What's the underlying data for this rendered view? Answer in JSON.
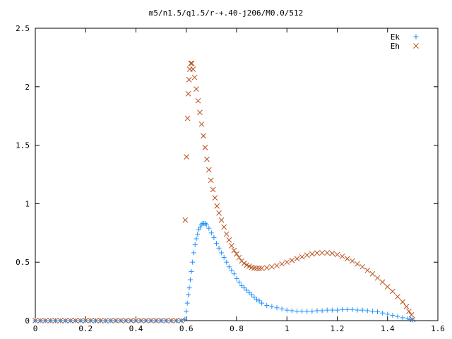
{
  "chart_data": {
    "type": "scatter",
    "title": "m5/n1.5/q1.5/r-+.40-j206/M0.0/512",
    "xlabel": "",
    "ylabel": "",
    "xlim": [
      0,
      1.6
    ],
    "ylim": [
      0,
      2.5
    ],
    "xticks": [
      "0",
      "0.2",
      "0.4",
      "0.6",
      "0.8",
      "1",
      "1.2",
      "1.4",
      "1.6"
    ],
    "yticks": [
      "0",
      "0.5",
      "1",
      "1.5",
      "2",
      "2.5"
    ],
    "grid": false,
    "legend_position": "top-right",
    "series": [
      {
        "name": "Ek",
        "marker": "plus",
        "color": "#1e90ff",
        "points": [
          [
            0.0,
            0
          ],
          [
            0.02,
            0
          ],
          [
            0.04,
            0
          ],
          [
            0.06,
            0
          ],
          [
            0.08,
            0
          ],
          [
            0.1,
            0
          ],
          [
            0.12,
            0
          ],
          [
            0.14,
            0
          ],
          [
            0.16,
            0
          ],
          [
            0.18,
            0
          ],
          [
            0.2,
            0
          ],
          [
            0.22,
            0
          ],
          [
            0.24,
            0
          ],
          [
            0.26,
            0
          ],
          [
            0.28,
            0
          ],
          [
            0.3,
            0
          ],
          [
            0.32,
            0
          ],
          [
            0.34,
            0
          ],
          [
            0.36,
            0
          ],
          [
            0.38,
            0
          ],
          [
            0.4,
            0
          ],
          [
            0.42,
            0
          ],
          [
            0.44,
            0
          ],
          [
            0.46,
            0
          ],
          [
            0.48,
            0
          ],
          [
            0.5,
            0
          ],
          [
            0.52,
            0
          ],
          [
            0.54,
            0
          ],
          [
            0.56,
            0
          ],
          [
            0.58,
            0
          ],
          [
            0.594,
            0.01
          ],
          [
            0.6,
            0.08
          ],
          [
            0.604,
            0.15
          ],
          [
            0.608,
            0.22
          ],
          [
            0.612,
            0.28
          ],
          [
            0.616,
            0.35
          ],
          [
            0.62,
            0.42
          ],
          [
            0.625,
            0.5
          ],
          [
            0.63,
            0.58
          ],
          [
            0.635,
            0.65
          ],
          [
            0.64,
            0.7
          ],
          [
            0.645,
            0.74
          ],
          [
            0.65,
            0.78
          ],
          [
            0.655,
            0.8
          ],
          [
            0.66,
            0.82
          ],
          [
            0.665,
            0.83
          ],
          [
            0.67,
            0.83
          ],
          [
            0.675,
            0.83
          ],
          [
            0.68,
            0.82
          ],
          [
            0.69,
            0.79
          ],
          [
            0.7,
            0.75
          ],
          [
            0.71,
            0.71
          ],
          [
            0.72,
            0.66
          ],
          [
            0.73,
            0.62
          ],
          [
            0.74,
            0.58
          ],
          [
            0.75,
            0.54
          ],
          [
            0.76,
            0.5
          ],
          [
            0.77,
            0.46
          ],
          [
            0.78,
            0.43
          ],
          [
            0.79,
            0.4
          ],
          [
            0.8,
            0.36
          ],
          [
            0.81,
            0.33
          ],
          [
            0.82,
            0.3
          ],
          [
            0.83,
            0.28
          ],
          [
            0.84,
            0.26
          ],
          [
            0.85,
            0.24
          ],
          [
            0.86,
            0.22
          ],
          [
            0.87,
            0.2
          ],
          [
            0.88,
            0.18
          ],
          [
            0.89,
            0.17
          ],
          [
            0.9,
            0.15
          ],
          [
            0.92,
            0.13
          ],
          [
            0.94,
            0.12
          ],
          [
            0.96,
            0.11
          ],
          [
            0.98,
            0.1
          ],
          [
            1.0,
            0.09
          ],
          [
            1.02,
            0.085
          ],
          [
            1.04,
            0.08
          ],
          [
            1.06,
            0.08
          ],
          [
            1.08,
            0.08
          ],
          [
            1.1,
            0.08
          ],
          [
            1.12,
            0.085
          ],
          [
            1.14,
            0.085
          ],
          [
            1.16,
            0.09
          ],
          [
            1.18,
            0.09
          ],
          [
            1.2,
            0.09
          ],
          [
            1.22,
            0.095
          ],
          [
            1.24,
            0.095
          ],
          [
            1.26,
            0.095
          ],
          [
            1.28,
            0.09
          ],
          [
            1.3,
            0.09
          ],
          [
            1.32,
            0.085
          ],
          [
            1.34,
            0.08
          ],
          [
            1.36,
            0.075
          ],
          [
            1.38,
            0.065
          ],
          [
            1.4,
            0.055
          ],
          [
            1.42,
            0.045
          ],
          [
            1.44,
            0.035
          ],
          [
            1.46,
            0.025
          ],
          [
            1.48,
            0.015
          ],
          [
            1.49,
            0.01
          ],
          [
            1.5,
            0.005
          ]
        ]
      },
      {
        "name": "Eh",
        "marker": "cross",
        "color": "#b8501a",
        "points": [
          [
            0.0,
            0
          ],
          [
            0.02,
            0
          ],
          [
            0.04,
            0
          ],
          [
            0.06,
            0
          ],
          [
            0.08,
            0
          ],
          [
            0.1,
            0
          ],
          [
            0.12,
            0
          ],
          [
            0.14,
            0
          ],
          [
            0.16,
            0
          ],
          [
            0.18,
            0
          ],
          [
            0.2,
            0
          ],
          [
            0.22,
            0
          ],
          [
            0.24,
            0
          ],
          [
            0.26,
            0
          ],
          [
            0.28,
            0
          ],
          [
            0.3,
            0
          ],
          [
            0.32,
            0
          ],
          [
            0.34,
            0
          ],
          [
            0.36,
            0
          ],
          [
            0.38,
            0
          ],
          [
            0.4,
            0
          ],
          [
            0.42,
            0
          ],
          [
            0.44,
            0
          ],
          [
            0.46,
            0
          ],
          [
            0.48,
            0
          ],
          [
            0.5,
            0
          ],
          [
            0.52,
            0
          ],
          [
            0.54,
            0
          ],
          [
            0.56,
            0
          ],
          [
            0.58,
            0
          ],
          [
            0.596,
            0.86
          ],
          [
            0.601,
            1.4
          ],
          [
            0.605,
            1.73
          ],
          [
            0.608,
            1.94
          ],
          [
            0.611,
            2.06
          ],
          [
            0.614,
            2.15
          ],
          [
            0.618,
            2.2
          ],
          [
            0.622,
            2.2
          ],
          [
            0.627,
            2.15
          ],
          [
            0.633,
            2.08
          ],
          [
            0.64,
            1.98
          ],
          [
            0.647,
            1.88
          ],
          [
            0.654,
            1.78
          ],
          [
            0.661,
            1.68
          ],
          [
            0.668,
            1.58
          ],
          [
            0.675,
            1.48
          ],
          [
            0.682,
            1.38
          ],
          [
            0.69,
            1.29
          ],
          [
            0.698,
            1.2
          ],
          [
            0.706,
            1.12
          ],
          [
            0.714,
            1.05
          ],
          [
            0.722,
            0.98
          ],
          [
            0.73,
            0.92
          ],
          [
            0.74,
            0.86
          ],
          [
            0.75,
            0.8
          ],
          [
            0.76,
            0.74
          ],
          [
            0.77,
            0.69
          ],
          [
            0.78,
            0.64
          ],
          [
            0.79,
            0.6
          ],
          [
            0.8,
            0.57
          ],
          [
            0.81,
            0.54
          ],
          [
            0.82,
            0.51
          ],
          [
            0.83,
            0.49
          ],
          [
            0.84,
            0.475
          ],
          [
            0.85,
            0.465
          ],
          [
            0.86,
            0.455
          ],
          [
            0.87,
            0.45
          ],
          [
            0.88,
            0.448
          ],
          [
            0.89,
            0.447
          ],
          [
            0.9,
            0.448
          ],
          [
            0.92,
            0.452
          ],
          [
            0.94,
            0.46
          ],
          [
            0.96,
            0.47
          ],
          [
            0.98,
            0.485
          ],
          [
            1.0,
            0.5
          ],
          [
            1.02,
            0.515
          ],
          [
            1.04,
            0.53
          ],
          [
            1.06,
            0.545
          ],
          [
            1.08,
            0.56
          ],
          [
            1.1,
            0.57
          ],
          [
            1.12,
            0.578
          ],
          [
            1.14,
            0.58
          ],
          [
            1.16,
            0.58
          ],
          [
            1.18,
            0.575
          ],
          [
            1.2,
            0.565
          ],
          [
            1.22,
            0.55
          ],
          [
            1.24,
            0.53
          ],
          [
            1.26,
            0.51
          ],
          [
            1.28,
            0.485
          ],
          [
            1.3,
            0.46
          ],
          [
            1.32,
            0.43
          ],
          [
            1.34,
            0.4
          ],
          [
            1.36,
            0.365
          ],
          [
            1.38,
            0.33
          ],
          [
            1.4,
            0.29
          ],
          [
            1.42,
            0.25
          ],
          [
            1.44,
            0.205
          ],
          [
            1.46,
            0.16
          ],
          [
            1.475,
            0.12
          ],
          [
            1.485,
            0.08
          ],
          [
            1.495,
            0.05
          ],
          [
            1.5,
            0.01
          ]
        ]
      }
    ]
  }
}
